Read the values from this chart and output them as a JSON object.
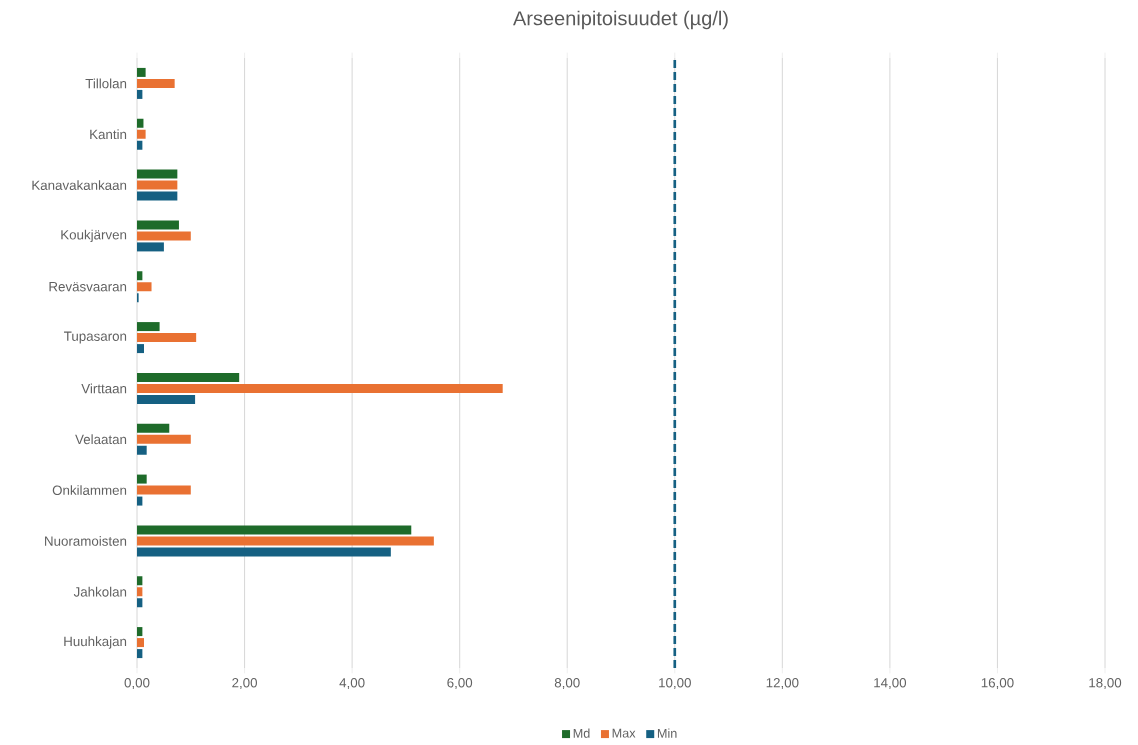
{
  "chart_data": {
    "type": "bar",
    "orientation": "horizontal",
    "title": "Arseenipitoisuudet (µg/l)",
    "categories": [
      "Tillolan",
      "Kantin",
      "Kanavakankaan",
      "Koukjärven",
      "Reväsvaaran",
      "Tupasaron",
      "Virttaan",
      "Velaatan",
      "Onkilammen",
      "Nuoramoisten",
      "Jahkolan",
      "Huuhkajan"
    ],
    "series": [
      {
        "name": "Md",
        "color": "#1e6b2a",
        "values": [
          0.16,
          0.12,
          0.75,
          0.78,
          0.1,
          0.42,
          1.9,
          0.6,
          0.18,
          5.1,
          0.1,
          0.1
        ]
      },
      {
        "name": "Max",
        "color": "#e97132",
        "values": [
          0.7,
          0.16,
          0.75,
          1.0,
          0.27,
          1.1,
          6.8,
          1.0,
          1.0,
          5.52,
          0.1,
          0.13
        ]
      },
      {
        "name": "Min",
        "color": "#156082",
        "values": [
          0.1,
          0.1,
          0.75,
          0.5,
          0.03,
          0.13,
          1.08,
          0.18,
          0.1,
          4.72,
          0.1,
          0.1
        ]
      }
    ],
    "xlim": [
      0,
      18
    ],
    "xticks": [
      {
        "value": 0,
        "label": "0,00"
      },
      {
        "value": 2,
        "label": "2,00"
      },
      {
        "value": 4,
        "label": "4,00"
      },
      {
        "value": 6,
        "label": "6,00"
      },
      {
        "value": 8,
        "label": "8,00"
      },
      {
        "value": 10,
        "label": "10,00"
      },
      {
        "value": 12,
        "label": "12,00"
      },
      {
        "value": 14,
        "label": "14,00"
      },
      {
        "value": 16,
        "label": "16,00"
      },
      {
        "value": 18,
        "label": "18,00"
      }
    ],
    "ref_lines": [
      {
        "axis": "x",
        "value": 10,
        "color": "#156082",
        "line_style": "dashed"
      }
    ],
    "grid": "x",
    "legend": "bottom"
  }
}
